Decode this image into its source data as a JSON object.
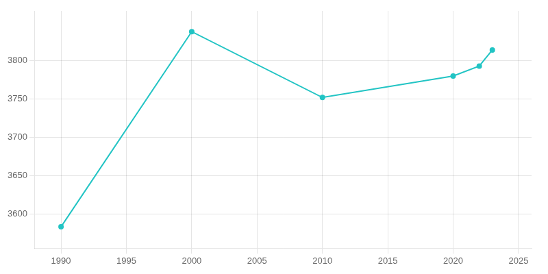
{
  "chart_data": {
    "type": "line",
    "x": [
      1990,
      2000,
      2010,
      2020,
      2022,
      2023
    ],
    "values": [
      3583,
      3838,
      3752,
      3780,
      3793,
      3814
    ],
    "color": "#22c4c4",
    "marker": "circle",
    "xlim": [
      1988,
      2026
    ],
    "ylim": [
      3555,
      3865
    ],
    "xticks": [
      1990,
      1995,
      2000,
      2005,
      2010,
      2015,
      2020,
      2025
    ],
    "yticks": [
      3600,
      3650,
      3700,
      3750,
      3800
    ],
    "grid": true
  }
}
